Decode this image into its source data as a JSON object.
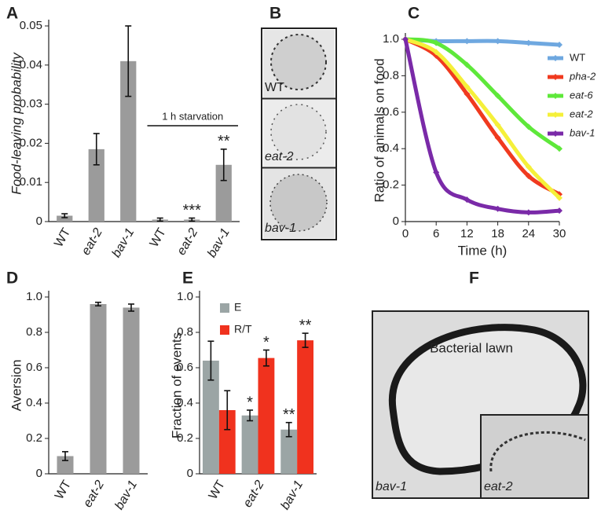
{
  "chart_data": [
    {
      "type": "bar",
      "panel": "A",
      "ylabel": "Food-leaving probability",
      "categories": [
        "WT",
        "eat-2",
        "bav-1",
        "WT",
        "eat-2",
        "bav-1"
      ],
      "values": [
        0.0015,
        0.0185,
        0.041,
        0.0005,
        0.0005,
        0.0145
      ],
      "errors": [
        0.0005,
        0.004,
        0.009,
        0.0004,
        0.0004,
        0.004
      ],
      "significance": [
        null,
        null,
        null,
        null,
        "***",
        "**"
      ],
      "annotation": "1 h starvation",
      "color": "#9b9b9b",
      "ylim": [
        0,
        0.05
      ],
      "yticks": [
        0,
        0.01,
        0.02,
        0.03,
        0.04,
        0.05
      ]
    },
    {
      "type": "line",
      "panel": "C",
      "xlabel": "Time (h)",
      "ylabel": "Ratio of animals on food",
      "x": [
        0,
        6,
        12,
        18,
        24,
        30
      ],
      "xlim": [
        0,
        30
      ],
      "xticks": [
        0,
        6,
        12,
        18,
        24,
        30
      ],
      "ylim": [
        0,
        1
      ],
      "yticks": [
        0,
        0.2,
        0.4,
        0.6,
        0.8,
        {
          "value": 1,
          "label": "1.0"
        }
      ],
      "series": [
        {
          "name": "WT",
          "color": "#6fa8e0",
          "values": [
            1.0,
            0.99,
            0.99,
            0.99,
            0.98,
            0.97
          ]
        },
        {
          "name": "pha-2",
          "color": "#f03a1f",
          "values": [
            1.0,
            0.91,
            0.7,
            0.46,
            0.25,
            0.15
          ]
        },
        {
          "name": "eat-6",
          "color": "#5ee83a",
          "values": [
            1.0,
            0.98,
            0.86,
            0.69,
            0.52,
            0.4
          ]
        },
        {
          "name": "eat-2",
          "color": "#f5f03a",
          "values": [
            1.0,
            0.93,
            0.74,
            0.53,
            0.3,
            0.13
          ]
        },
        {
          "name": "bav-1",
          "color": "#7a2aa8",
          "values": [
            1.0,
            0.27,
            0.12,
            0.07,
            0.05,
            0.06
          ]
        }
      ]
    },
    {
      "type": "bar",
      "panel": "D",
      "ylabel": "Aversion",
      "categories": [
        "WT",
        "eat-2",
        "bav-1"
      ],
      "values": [
        0.1,
        0.96,
        0.94
      ],
      "errors": [
        0.025,
        0.01,
        0.02
      ],
      "color": "#9b9b9b",
      "ylim": [
        0,
        1
      ],
      "yticks": [
        0,
        0.2,
        0.4,
        0.6,
        0.8,
        {
          "value": 1,
          "label": "1.0"
        }
      ]
    },
    {
      "type": "bar",
      "panel": "E",
      "ylabel": "Fraction of events",
      "categories": [
        "WT",
        "eat-2",
        "bav-1"
      ],
      "series": [
        {
          "name": "E",
          "color": "#9ba5a5",
          "values": [
            0.64,
            0.33,
            0.25
          ],
          "errors": [
            0.11,
            0.03,
            0.04
          ],
          "significance": [
            null,
            "*",
            "**"
          ]
        },
        {
          "name": "R/T",
          "color": "#f0321e",
          "values": [
            0.36,
            0.655,
            0.755
          ],
          "errors": [
            0.11,
            0.045,
            0.04
          ],
          "significance": [
            null,
            "*",
            "**"
          ]
        }
      ],
      "ylim": [
        0,
        1
      ],
      "yticks": [
        0,
        0.2,
        0.4,
        0.6,
        0.8,
        {
          "value": 1,
          "label": "1.0"
        }
      ]
    }
  ],
  "images": [
    {
      "panel": "B",
      "labels": [
        "WT",
        "eat-2",
        "bav-1"
      ]
    },
    {
      "panel": "F",
      "caption": "Bacterial lawn",
      "labels": [
        "bav-1",
        "eat-2"
      ]
    }
  ]
}
